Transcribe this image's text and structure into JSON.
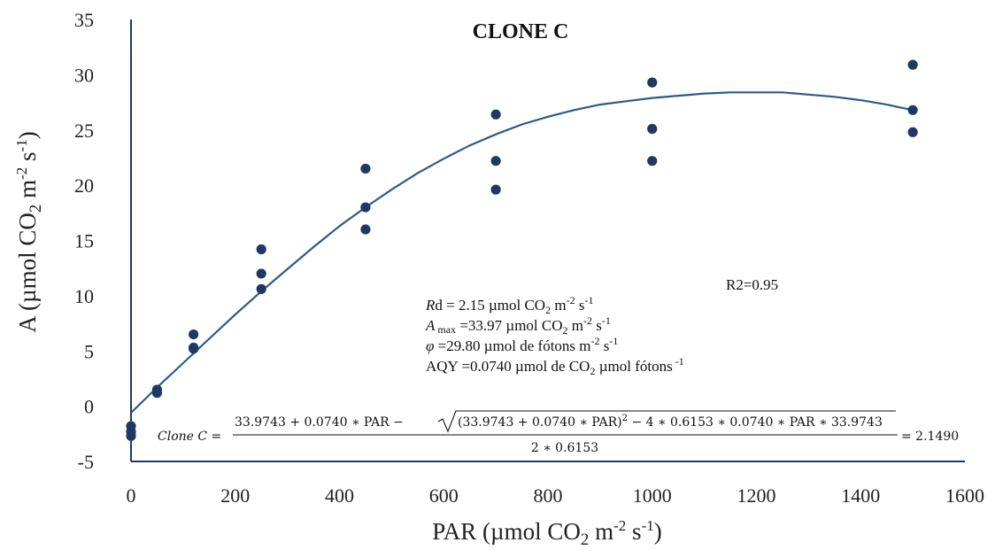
{
  "chart_data": {
    "type": "scatter",
    "title": "CLONE C",
    "xlabel": {
      "pre": "PAR (µmol CO",
      "sub": "2",
      "mid": " m",
      "sup1": "-2",
      "mid2": " s",
      "sup2": "-1",
      "post": ")"
    },
    "ylabel": {
      "pre": "A (µmol CO",
      "sub": "2",
      "mid": " m",
      "sup1": "-2",
      "mid2": " s",
      "sup2": "-1",
      "post": ")"
    },
    "xlim": [
      0,
      1600
    ],
    "ylim": [
      -5,
      35
    ],
    "xticks": [
      "0",
      "200",
      "400",
      "600",
      "800",
      "1000",
      "1200",
      "1400",
      "1600"
    ],
    "yticks": [
      "-5",
      "0",
      "5",
      "10",
      "15",
      "20",
      "25",
      "30",
      "35"
    ],
    "grid": false,
    "colors": {
      "points": "#1f3864",
      "curve": "#2e5a87",
      "axis": "#1f3864"
    },
    "points": [
      {
        "x": 0,
        "y": -1.8
      },
      {
        "x": 0,
        "y": -2.3
      },
      {
        "x": 0,
        "y": -2.7
      },
      {
        "x": 50,
        "y": 1.5
      },
      {
        "x": 50,
        "y": 1.2
      },
      {
        "x": 120,
        "y": 6.5
      },
      {
        "x": 120,
        "y": 5.3
      },
      {
        "x": 120,
        "y": 5.2
      },
      {
        "x": 250,
        "y": 14.2
      },
      {
        "x": 250,
        "y": 12.0
      },
      {
        "x": 250,
        "y": 10.6
      },
      {
        "x": 450,
        "y": 21.5
      },
      {
        "x": 450,
        "y": 18.0
      },
      {
        "x": 450,
        "y": 16.0
      },
      {
        "x": 700,
        "y": 26.4
      },
      {
        "x": 700,
        "y": 22.2
      },
      {
        "x": 700,
        "y": 19.6
      },
      {
        "x": 1000,
        "y": 29.3
      },
      {
        "x": 1000,
        "y": 25.1
      },
      {
        "x": 1000,
        "y": 22.2
      },
      {
        "x": 1500,
        "y": 30.9
      },
      {
        "x": 1500,
        "y": 26.8
      },
      {
        "x": 1500,
        "y": 24.8
      }
    ],
    "fit_curve": {
      "x": [
        0,
        50,
        100,
        150,
        200,
        250,
        300,
        350,
        400,
        450,
        500,
        550,
        600,
        650,
        700,
        750,
        800,
        850,
        900,
        950,
        1000,
        1050,
        1100,
        1150,
        1200,
        1250,
        1300,
        1350,
        1400,
        1450,
        1500
      ],
      "y": [
        -0.6,
        1.7,
        3.9,
        6.1,
        8.3,
        10.4,
        12.4,
        14.4,
        16.3,
        18.0,
        19.6,
        21.1,
        22.4,
        23.6,
        24.6,
        25.5,
        26.2,
        26.8,
        27.3,
        27.6,
        27.9,
        28.1,
        28.3,
        28.4,
        28.4,
        28.4,
        28.2,
        28.0,
        27.7,
        27.3,
        26.8
      ]
    },
    "annotations": {
      "r2": "R2=0.95",
      "rd": {
        "pre": "R",
        "mid": "d = 2.15 µmol CO",
        "sub": "2",
        "m": " m",
        "sup1": "-2",
        "s": " s",
        "sup2": "-1"
      },
      "amax": {
        "pre": "A",
        "sub0": " max",
        "mid": " =33.97 µmol CO",
        "sub": "2",
        "m": " m",
        "sup1": "-2",
        "s": " s",
        "sup2": "-1"
      },
      "phi": {
        "pre": "φ",
        "mid": " =29.80 µmol de fótons m",
        "sup1": "-2",
        "s": " s",
        "sup2": "-1"
      },
      "aqy": {
        "mid": "AQY =0.0740 µmol de CO",
        "sub": "2",
        "post": " µmol fótons",
        "sup": " -1"
      },
      "equation": {
        "lhs": "Clone C =",
        "numerator": "33.9743 + 0.0740 ∗ PAR −",
        "radicand": "(33.9743 + 0.0740 ∗ PAR)",
        "radicand_sup": "2",
        "radicand_rest": " − 4 ∗ 0.6153 ∗ 0.0740 ∗ PAR ∗ 33.9743",
        "denominator": "2 ∗ 0.6153",
        "rhs": "= 2.1490"
      }
    }
  }
}
